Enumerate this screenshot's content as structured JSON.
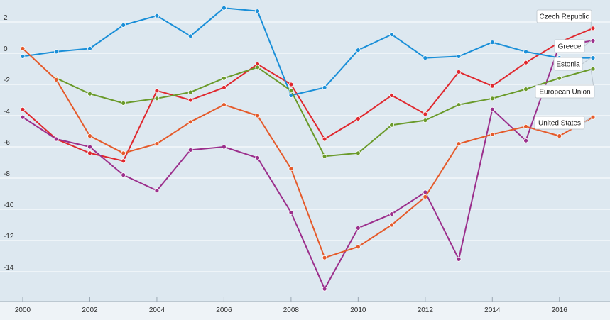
{
  "chart_data": {
    "type": "line",
    "title": "",
    "xlabel": "",
    "ylabel": "",
    "xlim": [
      2000,
      2017
    ],
    "ylim": [
      -15.2,
      3.2
    ],
    "grid": true,
    "x": [
      2000,
      2001,
      2002,
      2003,
      2004,
      2005,
      2006,
      2007,
      2008,
      2009,
      2010,
      2011,
      2012,
      2013,
      2014,
      2015,
      2016,
      2017
    ],
    "x_ticks": [
      2000,
      2002,
      2004,
      2006,
      2008,
      2010,
      2012,
      2014,
      2016
    ],
    "x_tick_labels": [
      "2000",
      "2002",
      "2004",
      "2006",
      "2008",
      "2010",
      "2012",
      "2014",
      "2016"
    ],
    "y_ticks": [
      2,
      0,
      -2,
      -4,
      -6,
      -8,
      -10,
      -12,
      -14
    ],
    "y_tick_labels": [
      "2",
      "0",
      "-2",
      "-4",
      "-6",
      "-8",
      "-10",
      "-12",
      "-14"
    ],
    "series": [
      {
        "name": "Czech Republic",
        "color": "#e0282e",
        "values": [
          -3.6,
          -5.5,
          -6.4,
          -6.9,
          -2.4,
          -3.0,
          -2.2,
          -0.7,
          -2.0,
          -5.5,
          -4.2,
          -2.7,
          -3.9,
          -1.2,
          -2.1,
          -0.6,
          0.7,
          1.6
        ]
      },
      {
        "name": "Greece",
        "color": "#9b2f8c",
        "values": [
          -4.1,
          -5.5,
          -6.0,
          -7.8,
          -8.8,
          -6.2,
          -6.0,
          -6.7,
          -10.2,
          -15.1,
          -11.2,
          -10.3,
          -8.9,
          -13.2,
          -3.6,
          -5.6,
          0.5,
          0.8
        ]
      },
      {
        "name": "Estonia",
        "color": "#1a8fd8",
        "values": [
          -0.2,
          0.1,
          0.3,
          1.8,
          2.4,
          1.1,
          2.9,
          2.7,
          -2.7,
          -2.2,
          0.2,
          1.2,
          -0.3,
          -0.2,
          0.7,
          0.1,
          -0.3,
          -0.3
        ]
      },
      {
        "name": "European Union",
        "color": "#6a9a2a",
        "values": [
          null,
          -1.6,
          -2.6,
          -3.2,
          -2.9,
          -2.5,
          -1.6,
          -0.9,
          -2.4,
          -6.6,
          -6.4,
          -4.6,
          -4.3,
          -3.3,
          -2.9,
          -2.3,
          -1.6,
          -1.0
        ]
      },
      {
        "name": "United States",
        "color": "#e55a2a",
        "values": [
          0.3,
          -1.7,
          -5.3,
          -6.4,
          -5.8,
          -4.4,
          -3.3,
          -4.0,
          -7.4,
          -13.1,
          -12.4,
          -11.0,
          -9.2,
          -5.8,
          -5.2,
          -4.7,
          -5.3,
          -4.1
        ]
      }
    ],
    "legend_labels": [
      "Czech Republic",
      "Greece",
      "Estonia",
      "European Union",
      "United States"
    ],
    "legend_placement": "right, at line ends"
  }
}
